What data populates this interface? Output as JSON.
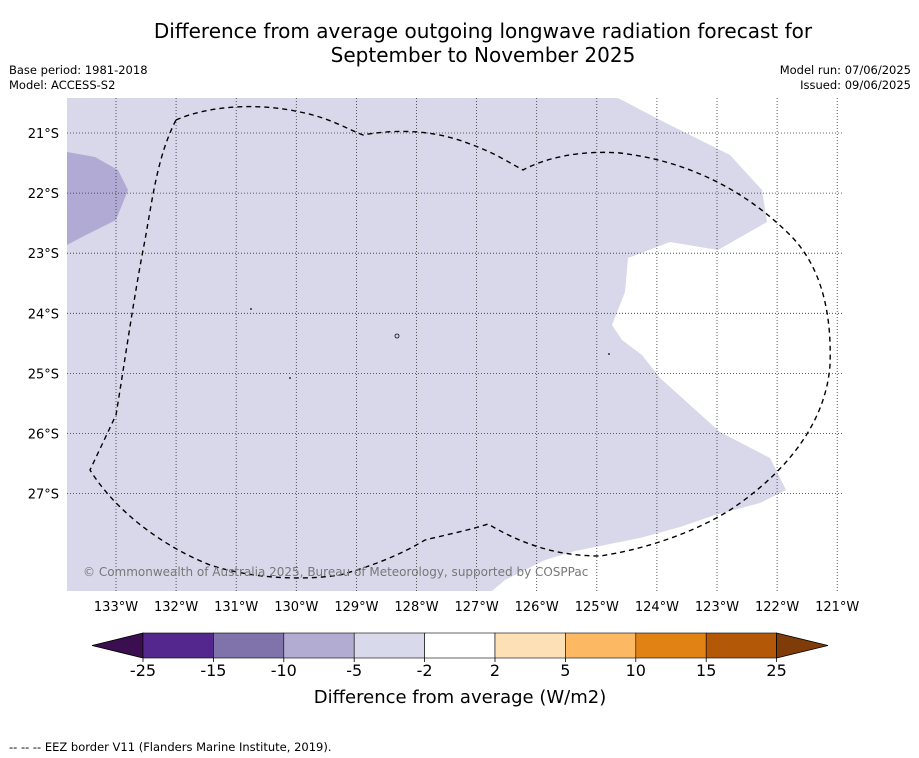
{
  "title": {
    "line1": "Difference from average outgoing longwave radiation forecast for",
    "line2": "September to November 2025"
  },
  "meta": {
    "base_period": "Base period: 1981-2018",
    "model": "Model: ACCESS-S2",
    "model_run": "Model run: 07/06/2025",
    "issued": "Issued: 09/06/2025"
  },
  "map": {
    "lon_labels": [
      "133°W",
      "132°W",
      "131°W",
      "130°W",
      "129°W",
      "128°W",
      "127°W",
      "126°W",
      "125°W",
      "124°W",
      "123°W",
      "122°W",
      "121°W"
    ],
    "lat_labels": [
      "21°S",
      "22°S",
      "23°S",
      "24°S",
      "25°S",
      "26°S",
      "27°S"
    ],
    "copyright": "© Commonwealth of Australia 2025, Bureau of Meteorology, supported by COSPPac",
    "fill_colors": {
      "neg_2_5": "#d8d8ea",
      "neg_5_10": "#b0aad4"
    }
  },
  "colorbar": {
    "title": "Difference from average (W/m2)",
    "ticks": [
      "-25",
      "-15",
      "-10",
      "-5",
      "-2",
      "2",
      "5",
      "10",
      "15",
      "25"
    ],
    "colors": [
      "#3b0f4f",
      "#54278f",
      "#8073ac",
      "#b2abd2",
      "#d8daeb",
      "#ffffff",
      "#fee0b6",
      "#fdb863",
      "#e08214",
      "#b35806",
      "#7f3b08"
    ]
  },
  "footnote": "--  --  -- EEZ border V11 (Flanders Marine Institute, 2019)."
}
